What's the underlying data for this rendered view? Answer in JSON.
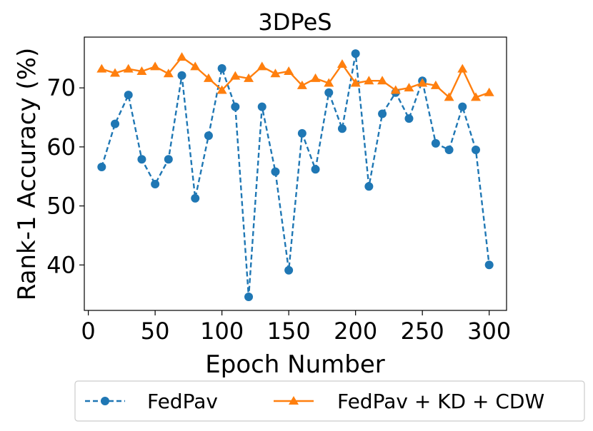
{
  "chart_data": {
    "type": "line",
    "title": "3DPeS",
    "xlabel": "Epoch Number",
    "ylabel": "Rank-1 Accuracy (%)",
    "xlim": [
      -3,
      313
    ],
    "ylim": [
      32.3,
      78.6
    ],
    "xticks": [
      0,
      50,
      100,
      150,
      200,
      250,
      300
    ],
    "yticks": [
      40,
      50,
      60,
      70
    ],
    "x": [
      10,
      20,
      30,
      40,
      50,
      60,
      70,
      80,
      90,
      100,
      110,
      120,
      130,
      140,
      150,
      160,
      170,
      180,
      190,
      200,
      210,
      220,
      230,
      240,
      250,
      260,
      270,
      280,
      290,
      300
    ],
    "series": [
      {
        "name": "FedPav",
        "color": "#1f77b4",
        "linestyle": "dashed",
        "marker": "circle",
        "values": [
          56.6,
          63.9,
          68.8,
          57.9,
          53.7,
          57.9,
          72.1,
          51.3,
          61.9,
          73.3,
          66.8,
          34.6,
          66.8,
          55.8,
          39.1,
          62.3,
          56.2,
          69.2,
          63.1,
          75.8,
          53.3,
          65.6,
          69.2,
          64.8,
          71.2,
          60.6,
          59.5,
          66.8,
          59.5,
          40.0
        ]
      },
      {
        "name": "FedPav + KD + CDW",
        "color": "#ff7f0e",
        "linestyle": "solid",
        "marker": "triangle",
        "values": [
          73.2,
          72.5,
          73.2,
          72.8,
          73.6,
          72.4,
          75.2,
          73.6,
          71.6,
          69.6,
          72.0,
          71.6,
          73.6,
          72.4,
          72.8,
          70.4,
          71.6,
          70.8,
          74.0,
          70.8,
          71.2,
          71.2,
          69.6,
          70.0,
          70.8,
          70.4,
          68.4,
          73.2,
          68.4,
          69.2
        ]
      }
    ],
    "legend_position": "bottom-center"
  }
}
